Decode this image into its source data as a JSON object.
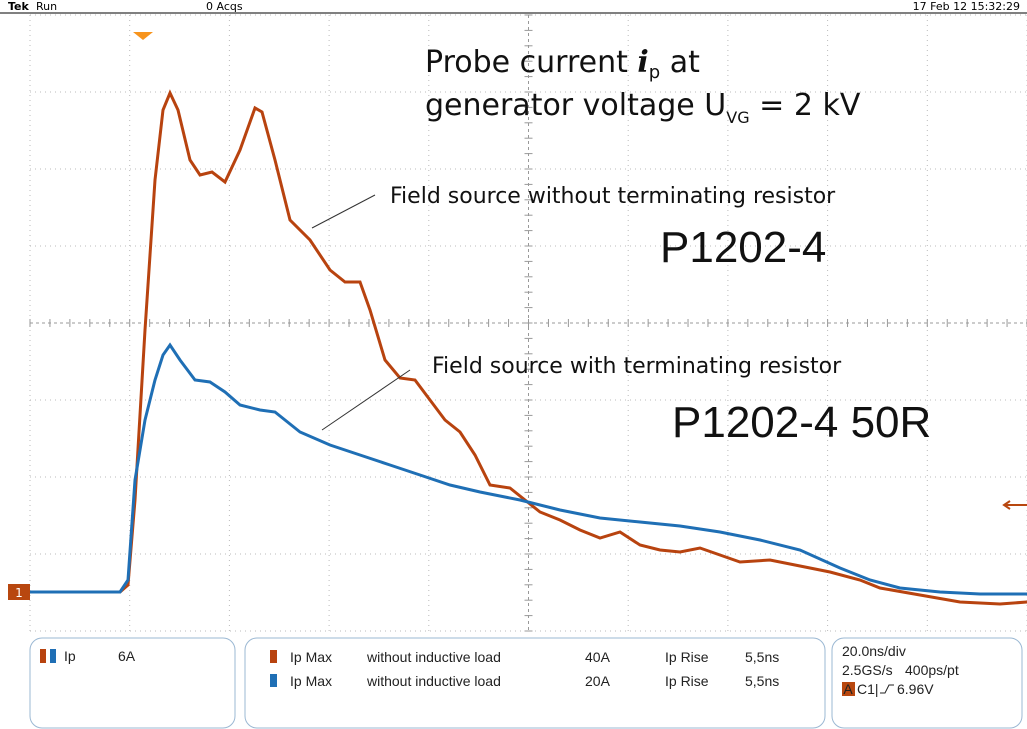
{
  "header": {
    "brand": "Tek",
    "mode": "Run",
    "acqs": "0 Acqs",
    "datetime": "17 Feb 12 15:32:29"
  },
  "title": {
    "line1": [
      "Probe current ",
      "i",
      "p",
      " at"
    ],
    "line2": [
      "generator voltage U",
      "VG",
      " = 2 kV"
    ]
  },
  "labels": {
    "without": "Field source without terminating resistor",
    "without_model": "P1202-4",
    "with": "Field source with terminating resistor",
    "with_model": "P1202-4 50R"
  },
  "channel_marker": "1",
  "channel_panel": {
    "name": "Ip",
    "scale": "6A"
  },
  "measurements": [
    [
      "Ip Max",
      "without inductive load",
      "40A",
      "Ip Rise",
      "5,5ns"
    ],
    [
      "Ip Max",
      "without inductive load",
      "20A",
      "Ip Rise",
      "5,5ns"
    ]
  ],
  "timebase": {
    "scale": "20.0ns/div",
    "rate": "2.5GS/s",
    "resolution": "400ps/pt",
    "trigger_mode": "A",
    "trigger_source": "C1|",
    "trigger_level": "6.96V"
  }
}
